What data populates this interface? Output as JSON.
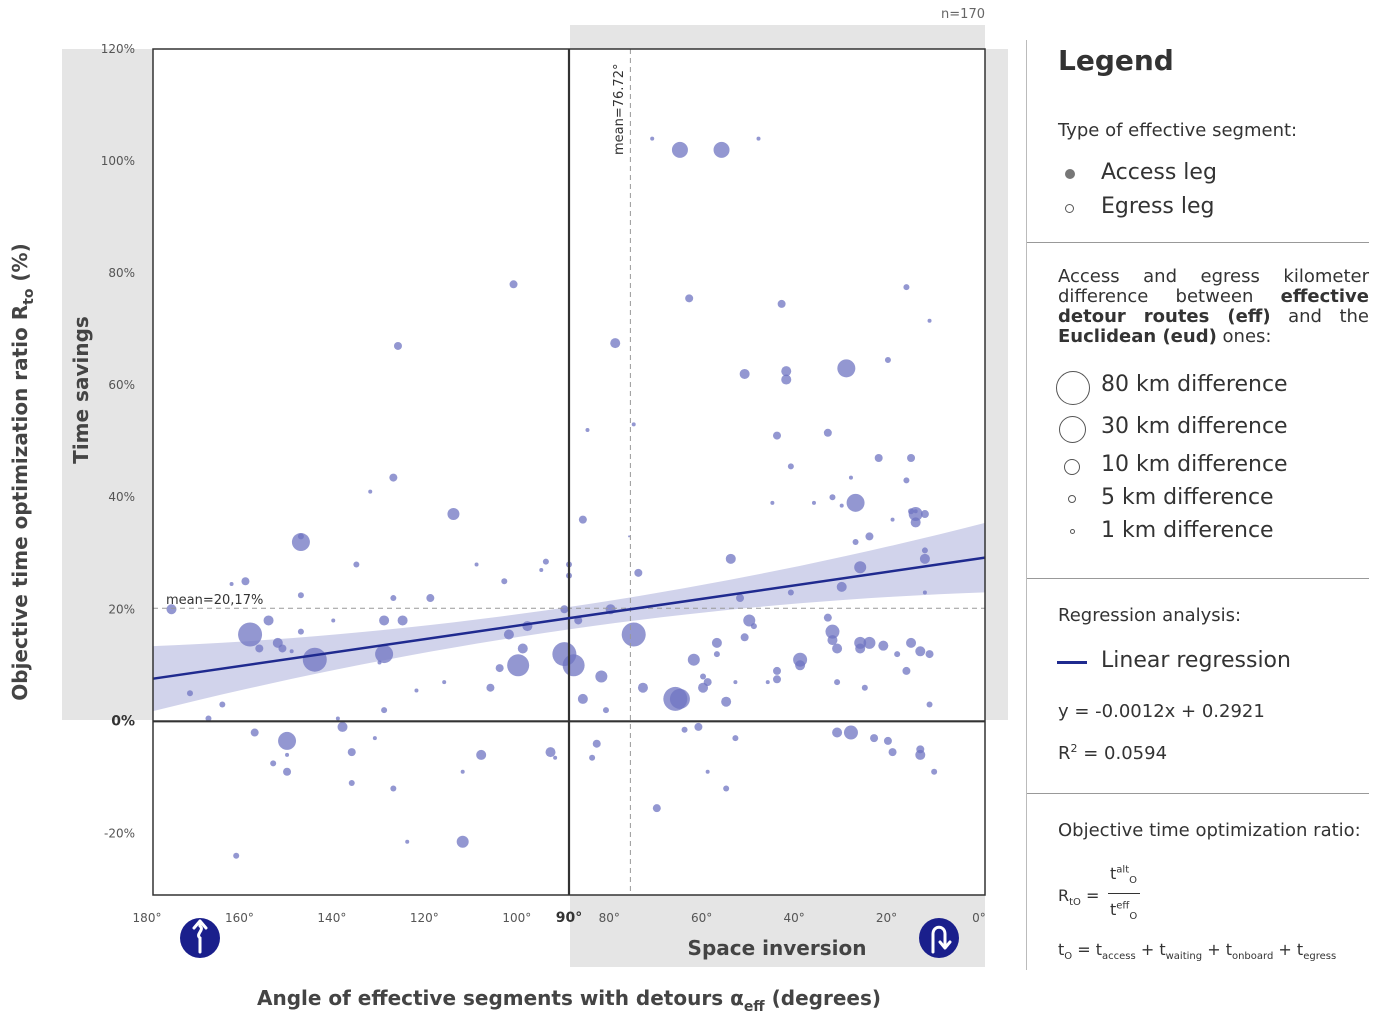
{
  "chart_data": {
    "type": "scatter",
    "n_label": "n=170",
    "xlabel": "Angle of effective segments with detours α",
    "xlabel_sub": "eff",
    "xlabel_suffix": " (degrees)",
    "ylabel": "Objective time optimization ratio R",
    "ylabel_sub": "to",
    "ylabel_suffix": " (%)",
    "x_axis_reversed": true,
    "xlim": [
      0,
      180
    ],
    "ylim": [
      -0.31,
      1.2
    ],
    "x_ticks": [
      "180°",
      "160°",
      "140°",
      "120°",
      "100°",
      "90°",
      "80°",
      "60°",
      "40°",
      "20°",
      "0°"
    ],
    "x_tick_values": [
      180,
      160,
      140,
      120,
      100,
      90,
      80,
      60,
      40,
      20,
      0
    ],
    "y_ticks": [
      "120%",
      "100%",
      "80%",
      "60%",
      "40%",
      "20%",
      "0%",
      "-20%"
    ],
    "y_tick_values": [
      1.2,
      1.0,
      0.8,
      0.6,
      0.4,
      0.2,
      0.0,
      -0.2
    ],
    "shaded_region_label_y": "Time savings",
    "shaded_region_label_x": "Space inversion",
    "mean_y_label": "mean=20,17%",
    "mean_y": 0.2017,
    "mean_x_label": "mean=76.72°",
    "mean_x": 76.72,
    "regression": {
      "slope": -0.0012,
      "intercept": 0.2921,
      "band_halfwidth_left": 0.058,
      "band_halfwidth_mid": 0.02,
      "band_halfwidth_right": 0.062,
      "color": "#1f2a8f"
    },
    "point_color": "#6f74c2",
    "points": [
      [
        176,
        0.2,
        5
      ],
      [
        172,
        0.05,
        3
      ],
      [
        168,
        0.005,
        3
      ],
      [
        165,
        0.03,
        3
      ],
      [
        163,
        0.245,
        2
      ],
      [
        162,
        -0.24,
        3
      ],
      [
        160,
        0.25,
        4
      ],
      [
        159,
        0.155,
        12
      ],
      [
        158,
        -0.02,
        4
      ],
      [
        157,
        0.13,
        4
      ],
      [
        155,
        0.18,
        5
      ],
      [
        154,
        -0.075,
        3
      ],
      [
        153,
        0.14,
        5
      ],
      [
        152,
        0.13,
        4
      ],
      [
        151,
        -0.035,
        9
      ],
      [
        151,
        -0.06,
        2
      ],
      [
        151,
        -0.09,
        4
      ],
      [
        150,
        0.125,
        2
      ],
      [
        148,
        0.225,
        3
      ],
      [
        148,
        0.16,
        3
      ],
      [
        148,
        0.32,
        9
      ],
      [
        148,
        0.33,
        3
      ],
      [
        145,
        0.11,
        12
      ],
      [
        141,
        0.18,
        2
      ],
      [
        140,
        0.005,
        2
      ],
      [
        139,
        -0.01,
        5
      ],
      [
        137,
        -0.055,
        4
      ],
      [
        137,
        -0.11,
        3
      ],
      [
        136,
        0.28,
        3
      ],
      [
        133,
        0.41,
        2
      ],
      [
        132,
        -0.03,
        2
      ],
      [
        131,
        0.105,
        2
      ],
      [
        130,
        0.12,
        9
      ],
      [
        130,
        0.02,
        3
      ],
      [
        130,
        0.18,
        5
      ],
      [
        128,
        -0.12,
        3
      ],
      [
        128,
        0.435,
        4
      ],
      [
        128,
        0.22,
        3
      ],
      [
        127,
        0.67,
        4
      ],
      [
        126,
        0.18,
        5
      ],
      [
        125,
        -0.215,
        2
      ],
      [
        123,
        0.055,
        2
      ],
      [
        120,
        0.22,
        4
      ],
      [
        117,
        0.07,
        2
      ],
      [
        115,
        0.37,
        6
      ],
      [
        113,
        -0.215,
        6
      ],
      [
        113,
        -0.09,
        2
      ],
      [
        110,
        0.28,
        2
      ],
      [
        109,
        -0.06,
        5
      ],
      [
        107,
        0.06,
        4
      ],
      [
        105,
        0.095,
        4
      ],
      [
        104,
        0.25,
        3
      ],
      [
        103,
        0.155,
        5
      ],
      [
        102,
        0.78,
        4
      ],
      [
        101,
        0.1,
        11
      ],
      [
        100,
        0.13,
        5
      ],
      [
        99,
        0.17,
        5
      ],
      [
        96,
        0.27,
        2
      ],
      [
        95,
        0.285,
        3
      ],
      [
        94,
        -0.055,
        5
      ],
      [
        93,
        -0.065,
        2
      ],
      [
        91,
        0.12,
        12
      ],
      [
        91,
        0.2,
        4
      ],
      [
        90,
        0.28,
        3
      ],
      [
        90,
        0.26,
        3
      ],
      [
        89,
        0.1,
        11
      ],
      [
        88,
        0.18,
        4
      ],
      [
        87,
        0.04,
        5
      ],
      [
        87,
        0.36,
        4
      ],
      [
        86,
        0.52,
        2
      ],
      [
        85,
        -0.065,
        3
      ],
      [
        84,
        -0.04,
        4
      ],
      [
        83,
        0.08,
        6
      ],
      [
        82,
        0.02,
        3
      ],
      [
        81,
        0.2,
        5
      ],
      [
        80,
        0.675,
        5
      ],
      [
        77,
        0.33,
        1
      ],
      [
        76,
        0.155,
        12
      ],
      [
        76,
        0.53,
        2
      ],
      [
        75,
        0.265,
        4
      ],
      [
        74,
        0.06,
        5
      ],
      [
        72,
        1.04,
        2
      ],
      [
        71,
        -0.155,
        4
      ],
      [
        67,
        0.04,
        12
      ],
      [
        66,
        0.04,
        10
      ],
      [
        66,
        1.02,
        8
      ],
      [
        65,
        -0.015,
        3
      ],
      [
        64,
        0.755,
        4
      ],
      [
        63,
        0.11,
        6
      ],
      [
        62,
        -0.01,
        4
      ],
      [
        61,
        0.06,
        5
      ],
      [
        61,
        0.08,
        3
      ],
      [
        60,
        -0.09,
        2
      ],
      [
        60,
        0.07,
        4
      ],
      [
        58,
        0.14,
        5
      ],
      [
        58,
        0.12,
        3
      ],
      [
        57,
        1.02,
        8
      ],
      [
        56,
        0.035,
        5
      ],
      [
        56,
        -0.12,
        3
      ],
      [
        55,
        0.29,
        5
      ],
      [
        54,
        0.07,
        2
      ],
      [
        54,
        -0.03,
        3
      ],
      [
        53,
        0.22,
        4
      ],
      [
        52,
        0.15,
        4
      ],
      [
        52,
        0.62,
        5
      ],
      [
        51,
        0.18,
        6
      ],
      [
        50,
        0.17,
        3
      ],
      [
        49,
        1.04,
        2
      ],
      [
        47,
        0.07,
        2
      ],
      [
        46,
        0.39,
        2
      ],
      [
        45,
        0.51,
        4
      ],
      [
        45,
        0.075,
        4
      ],
      [
        45,
        0.09,
        4
      ],
      [
        44,
        0.745,
        4
      ],
      [
        43,
        0.625,
        5
      ],
      [
        43,
        0.61,
        5
      ],
      [
        42,
        0.455,
        3
      ],
      [
        42,
        0.23,
        3
      ],
      [
        40,
        0.11,
        7
      ],
      [
        40,
        0.1,
        5
      ],
      [
        37,
        0.39,
        2
      ],
      [
        34,
        0.515,
        4
      ],
      [
        34,
        0.185,
        4
      ],
      [
        33,
        0.4,
        3
      ],
      [
        33,
        0.145,
        5
      ],
      [
        33,
        0.16,
        7
      ],
      [
        32,
        0.13,
        5
      ],
      [
        32,
        -0.02,
        5
      ],
      [
        32,
        0.07,
        3
      ],
      [
        31,
        0.24,
        5
      ],
      [
        31,
        0.385,
        2
      ],
      [
        30,
        0.63,
        9
      ],
      [
        29,
        -0.02,
        7
      ],
      [
        29,
        0.435,
        2
      ],
      [
        28,
        0.39,
        9
      ],
      [
        28,
        0.32,
        3
      ],
      [
        27,
        0.14,
        6
      ],
      [
        27,
        0.275,
        6
      ],
      [
        27,
        0.13,
        5
      ],
      [
        26,
        0.06,
        3
      ],
      [
        25,
        0.14,
        6
      ],
      [
        25,
        0.33,
        4
      ],
      [
        24,
        -0.03,
        4
      ],
      [
        23,
        0.47,
        4
      ],
      [
        22,
        0.135,
        5
      ],
      [
        21,
        -0.035,
        4
      ],
      [
        21,
        0.645,
        3
      ],
      [
        20,
        0.36,
        2
      ],
      [
        20,
        -0.055,
        4
      ],
      [
        19,
        0.12,
        3
      ],
      [
        17,
        0.775,
        3
      ],
      [
        17,
        0.09,
        4
      ],
      [
        17,
        0.43,
        3
      ],
      [
        16,
        0.47,
        4
      ],
      [
        16,
        0.14,
        5
      ],
      [
        16,
        0.375,
        3
      ],
      [
        15,
        0.37,
        7
      ],
      [
        15,
        0.375,
        2
      ],
      [
        15,
        0.355,
        5
      ],
      [
        14,
        -0.05,
        4
      ],
      [
        14,
        -0.06,
        5
      ],
      [
        14,
        0.125,
        5
      ],
      [
        13,
        0.23,
        2
      ],
      [
        13,
        0.305,
        3
      ],
      [
        13,
        0.29,
        5
      ],
      [
        13,
        0.37,
        4
      ],
      [
        12,
        0.12,
        4
      ],
      [
        12,
        0.715,
        2
      ],
      [
        12,
        0.03,
        3
      ],
      [
        11,
        -0.09,
        3
      ]
    ]
  },
  "legend": {
    "title": "Legend",
    "type_label": "Type of effective segment:",
    "access": "Access leg",
    "egress": "Egress leg",
    "km_desc_part1": "Access and egress kilometer difference between",
    "km_desc_bold1": "effective detour routes (eff)",
    "km_desc_part2": "and the",
    "km_desc_bold2": "Euclidean (eud)",
    "km_desc_part3": "ones:",
    "sizes": [
      "80 km difference",
      "30 km difference",
      "10 km difference",
      "5 km difference",
      "1 km difference"
    ],
    "regression_label": "Regression analysis:",
    "linear_regression": "Linear regression",
    "equation": "y = -0.0012x + 0.2921",
    "r2_prefix": "R",
    "r2_sup": "2",
    "r2_value": " = 0.0594",
    "ratio_label": "Objective time optimization ratio:",
    "ratio_lhs": "R",
    "ratio_lhs_sub": "tO",
    "ratio_num": "t",
    "ratio_num_sup": "alt",
    "ratio_num_sub": "O",
    "ratio_den": "t",
    "ratio_den_sup": "eff",
    "ratio_den_sub": "O",
    "to_formula_t": "t",
    "to_formula_sub": "O",
    "to_formula_terms": [
      {
        "t": "t",
        "sub": "access"
      },
      {
        "t": "t",
        "sub": "waiting"
      },
      {
        "t": "t",
        "sub": "onboard"
      },
      {
        "t": "t",
        "sub": "egress"
      }
    ]
  },
  "icons": [
    "detour-up-arrow-icon",
    "u-turn-icon"
  ]
}
